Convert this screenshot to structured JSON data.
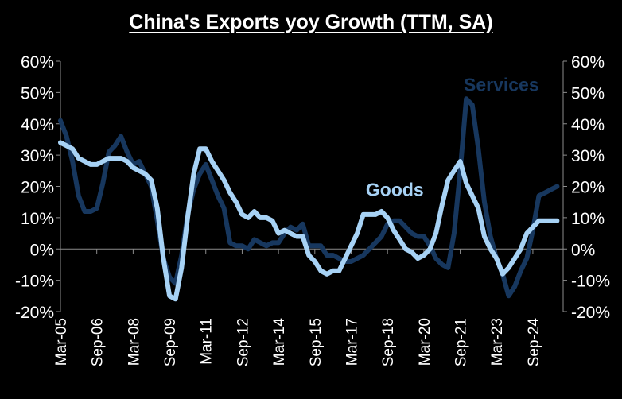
{
  "chart_data": {
    "type": "line",
    "title": "China's Exports yoy Growth (TTM, SA)",
    "ylim": [
      -20,
      60
    ],
    "y_ticks": [
      "-20%",
      "-10%",
      "0%",
      "10%",
      "20%",
      "30%",
      "40%",
      "50%",
      "60%"
    ],
    "y_tick_values": [
      -20,
      -10,
      0,
      10,
      20,
      30,
      40,
      50,
      60
    ],
    "x_range": [
      2005.0,
      2025.75
    ],
    "x_ticks": [
      "Mar-05",
      "Sep-06",
      "Mar-08",
      "Sep-09",
      "Mar-11",
      "Sep-12",
      "Mar-14",
      "Sep-15",
      "Mar-17",
      "Sep-18",
      "Mar-20",
      "Sep-21",
      "Mar-23",
      "Sep-24"
    ],
    "x_tick_values": [
      2005.0,
      2006.5,
      2008.0,
      2009.5,
      2011.0,
      2012.5,
      2014.0,
      2015.5,
      2017.0,
      2018.5,
      2020.0,
      2021.5,
      2023.0,
      2024.5
    ],
    "series": [
      {
        "name": "Services",
        "label": "Services",
        "color": "#17375e",
        "x": [
          2005.0,
          2005.25,
          2005.5,
          2005.75,
          2006.0,
          2006.25,
          2006.5,
          2006.75,
          2007.0,
          2007.25,
          2007.5,
          2007.75,
          2008.0,
          2008.25,
          2008.5,
          2008.75,
          2009.0,
          2009.25,
          2009.5,
          2009.75,
          2010.0,
          2010.25,
          2010.5,
          2010.75,
          2011.0,
          2011.25,
          2011.5,
          2011.75,
          2012.0,
          2012.25,
          2012.5,
          2012.75,
          2013.0,
          2013.25,
          2013.5,
          2013.75,
          2014.0,
          2014.25,
          2014.5,
          2014.75,
          2015.0,
          2015.25,
          2015.5,
          2015.75,
          2016.0,
          2016.25,
          2016.5,
          2016.75,
          2017.0,
          2017.25,
          2017.5,
          2017.75,
          2018.0,
          2018.25,
          2018.5,
          2018.75,
          2019.0,
          2019.25,
          2019.5,
          2019.75,
          2020.0,
          2020.25,
          2020.5,
          2020.75,
          2021.0,
          2021.25,
          2021.5,
          2021.75,
          2022.0,
          2022.25,
          2022.5,
          2022.75,
          2023.0,
          2023.25,
          2023.5,
          2023.75,
          2024.0,
          2024.25,
          2024.5,
          2024.75,
          2025.0,
          2025.25,
          2025.5
        ],
        "values": [
          41,
          36,
          28,
          17,
          12,
          12,
          13,
          21,
          31,
          33,
          36,
          31,
          27,
          28,
          24,
          20,
          9,
          -3,
          -9,
          -11,
          -2,
          11,
          19,
          24,
          27,
          22,
          17,
          13,
          2,
          1,
          1,
          0,
          3,
          2,
          1,
          2,
          2,
          5,
          7,
          6,
          8,
          1,
          1,
          1,
          -2,
          -2,
          -3,
          -4,
          -4,
          -3,
          -2,
          0,
          2,
          4,
          8,
          9,
          9,
          7,
          5,
          4,
          4,
          1,
          -3,
          -5,
          -6,
          5,
          25,
          48,
          46,
          32,
          15,
          4,
          -3,
          -8,
          -15,
          -12,
          -7,
          -3,
          6,
          17,
          18,
          19,
          20
        ]
      },
      {
        "name": "Goods",
        "label": "Goods",
        "color": "#a7d2f5",
        "x": [
          2005.0,
          2005.25,
          2005.5,
          2005.75,
          2006.0,
          2006.25,
          2006.5,
          2006.75,
          2007.0,
          2007.25,
          2007.5,
          2007.75,
          2008.0,
          2008.25,
          2008.5,
          2008.75,
          2009.0,
          2009.25,
          2009.5,
          2009.75,
          2010.0,
          2010.25,
          2010.5,
          2010.75,
          2011.0,
          2011.25,
          2011.5,
          2011.75,
          2012.0,
          2012.25,
          2012.5,
          2012.75,
          2013.0,
          2013.25,
          2013.5,
          2013.75,
          2014.0,
          2014.25,
          2014.5,
          2014.75,
          2015.0,
          2015.25,
          2015.5,
          2015.75,
          2016.0,
          2016.25,
          2016.5,
          2016.75,
          2017.0,
          2017.25,
          2017.5,
          2017.75,
          2018.0,
          2018.25,
          2018.5,
          2018.75,
          2019.0,
          2019.25,
          2019.5,
          2019.75,
          2020.0,
          2020.25,
          2020.5,
          2020.75,
          2021.0,
          2021.25,
          2021.5,
          2021.75,
          2022.0,
          2022.25,
          2022.5,
          2022.75,
          2023.0,
          2023.25,
          2023.5,
          2023.75,
          2024.0,
          2024.25,
          2024.5,
          2024.75,
          2025.0,
          2025.25,
          2025.5
        ],
        "values": [
          34,
          33,
          32,
          29,
          28,
          27,
          27,
          28,
          29,
          29,
          29,
          28,
          26,
          25,
          24,
          22,
          13,
          -3,
          -15,
          -16,
          -6,
          10,
          24,
          32,
          32,
          28,
          25,
          22,
          18,
          15,
          11,
          10,
          12,
          10,
          10,
          9,
          5,
          6,
          5,
          4,
          4,
          -2,
          -4,
          -7,
          -8,
          -7,
          -7,
          -3,
          1,
          5,
          11,
          11,
          11,
          12,
          10,
          6,
          3,
          0,
          -1,
          -3,
          -2,
          0,
          5,
          14,
          22,
          25,
          28,
          21,
          17,
          13,
          4,
          0,
          -3,
          -8,
          -6,
          -3,
          0,
          5,
          7,
          9,
          9,
          9,
          9
        ]
      }
    ]
  }
}
